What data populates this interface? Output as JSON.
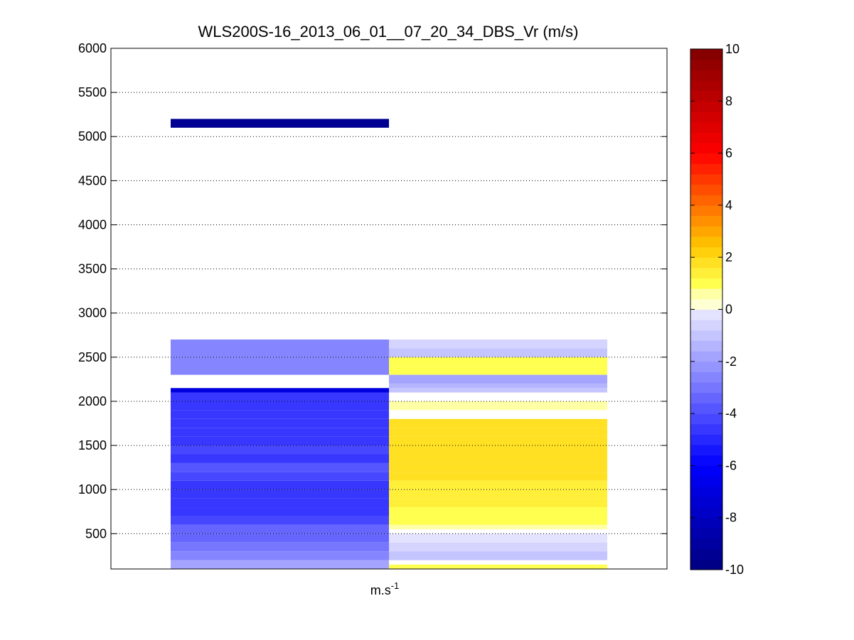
{
  "chart_data": {
    "type": "heatmap",
    "title": "WLS200S-16_2013_06_01__07_20_34_DBS_Vr (m/s)",
    "xlabel": "m.s",
    "xlabel_sup": "-1",
    "ylabel": "",
    "ylim": [
      100,
      6000
    ],
    "yticks": [
      500,
      1000,
      1500,
      2000,
      2500,
      3000,
      3500,
      4000,
      4500,
      5000,
      5500,
      6000
    ],
    "grid": "horizontal-dotted",
    "colorbar": {
      "range": [
        -10,
        10
      ],
      "ticks": [
        -10,
        -8,
        -6,
        -4,
        -2,
        0,
        2,
        4,
        6,
        8,
        10
      ],
      "colormap": "blue-white-yellow-red"
    },
    "columns": [
      {
        "segments": [
          {
            "y0": 5100,
            "y1": 5200,
            "value": -9.5
          },
          {
            "y0": 2500,
            "y1": 2700,
            "value": -2.8
          },
          {
            "y0": 2300,
            "y1": 2500,
            "value": -2.6
          },
          {
            "y0": 2100,
            "y1": 2150,
            "value": -7.0
          },
          {
            "y0": 2000,
            "y1": 2100,
            "value": -4.6
          },
          {
            "y0": 1900,
            "y1": 2000,
            "value": -4.4
          },
          {
            "y0": 1800,
            "y1": 1900,
            "value": -4.6
          },
          {
            "y0": 1700,
            "y1": 1800,
            "value": -4.4
          },
          {
            "y0": 1600,
            "y1": 1700,
            "value": -4.6
          },
          {
            "y0": 1500,
            "y1": 1600,
            "value": -4.4
          },
          {
            "y0": 1400,
            "y1": 1500,
            "value": -4.2
          },
          {
            "y0": 1300,
            "y1": 1400,
            "value": -4.4
          },
          {
            "y0": 1200,
            "y1": 1300,
            "value": -4.0
          },
          {
            "y0": 1100,
            "y1": 1200,
            "value": -4.2
          },
          {
            "y0": 1000,
            "y1": 1100,
            "value": -4.8
          },
          {
            "y0": 900,
            "y1": 1000,
            "value": -4.6
          },
          {
            "y0": 800,
            "y1": 900,
            "value": -4.8
          },
          {
            "y0": 700,
            "y1": 800,
            "value": -4.6
          },
          {
            "y0": 600,
            "y1": 700,
            "value": -4.2
          },
          {
            "y0": 500,
            "y1": 600,
            "value": -3.6
          },
          {
            "y0": 400,
            "y1": 500,
            "value": -3.4
          },
          {
            "y0": 300,
            "y1": 400,
            "value": -3.0
          },
          {
            "y0": 200,
            "y1": 300,
            "value": -2.6
          },
          {
            "y0": 100,
            "y1": 200,
            "value": -2.0
          }
        ]
      },
      {
        "segments": [
          {
            "y0": 2600,
            "y1": 2700,
            "value": -0.6
          },
          {
            "y0": 2500,
            "y1": 2600,
            "value": -1.2
          },
          {
            "y0": 2400,
            "y1": 2500,
            "value": 0.8
          },
          {
            "y0": 2300,
            "y1": 2400,
            "value": 1.2
          },
          {
            "y0": 2200,
            "y1": 2300,
            "value": -1.8
          },
          {
            "y0": 2150,
            "y1": 2200,
            "value": -1.4
          },
          {
            "y0": 2100,
            "y1": 2150,
            "value": -1.0
          },
          {
            "y0": 1900,
            "y1": 2000,
            "value": 0.4
          },
          {
            "y0": 1700,
            "y1": 1800,
            "value": 1.8
          },
          {
            "y0": 1600,
            "y1": 1700,
            "value": 1.9
          },
          {
            "y0": 1500,
            "y1": 1600,
            "value": 1.9
          },
          {
            "y0": 1400,
            "y1": 1500,
            "value": 1.9
          },
          {
            "y0": 1300,
            "y1": 1400,
            "value": 1.8
          },
          {
            "y0": 1200,
            "y1": 1300,
            "value": 1.9
          },
          {
            "y0": 1100,
            "y1": 1200,
            "value": 1.8
          },
          {
            "y0": 1000,
            "y1": 1100,
            "value": 1.5
          },
          {
            "y0": 900,
            "y1": 1000,
            "value": 1.6
          },
          {
            "y0": 800,
            "y1": 900,
            "value": 1.3
          },
          {
            "y0": 700,
            "y1": 800,
            "value": 1.1
          },
          {
            "y0": 600,
            "y1": 700,
            "value": 1.2
          },
          {
            "y0": 550,
            "y1": 600,
            "value": 0.6
          },
          {
            "y0": 400,
            "y1": 500,
            "value": -0.4
          },
          {
            "y0": 300,
            "y1": 400,
            "value": -0.6
          },
          {
            "y0": 200,
            "y1": 300,
            "value": -1.0
          },
          {
            "y0": 100,
            "y1": 150,
            "value": 1.0
          }
        ]
      }
    ]
  }
}
